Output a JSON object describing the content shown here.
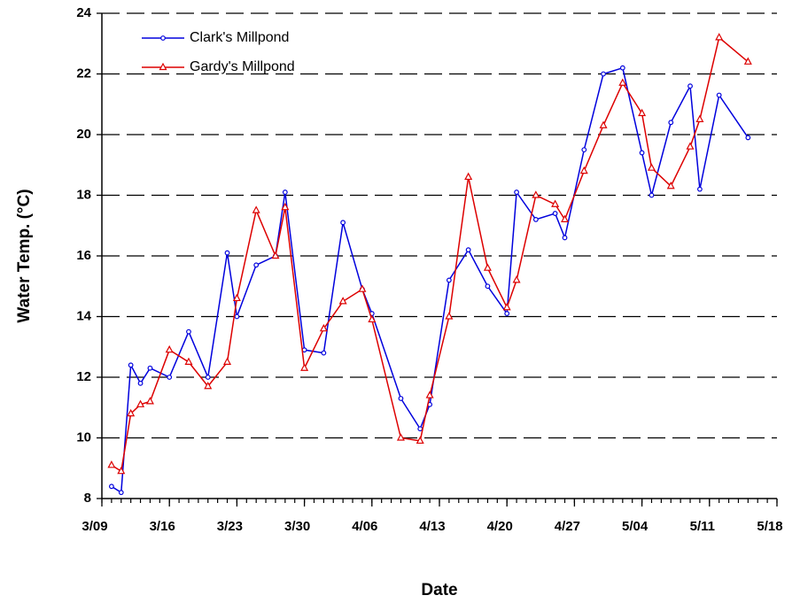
{
  "chart_data": {
    "type": "line",
    "x_label": "Date",
    "y_label": "Water Temp. (°C)",
    "x": [
      "3/10",
      "3/11",
      "3/12",
      "3/13",
      "3/14",
      "3/16",
      "3/18",
      "3/20",
      "3/22",
      "3/23",
      "3/25",
      "3/27",
      "3/28",
      "3/30",
      "4/01",
      "4/03",
      "4/05",
      "4/06",
      "4/09",
      "4/11",
      "4/12",
      "4/14",
      "4/16",
      "4/18",
      "4/20",
      "4/21",
      "4/23",
      "4/25",
      "4/26",
      "4/28",
      "4/30",
      "5/02",
      "5/04",
      "5/05",
      "5/07",
      "5/09",
      "5/10",
      "5/12",
      "5/15"
    ],
    "series": [
      {
        "name": "Clark's Millpond",
        "color": "#0000dd",
        "marker": "circle",
        "values": [
          8.4,
          8.2,
          12.4,
          11.8,
          12.3,
          12.0,
          13.5,
          12.0,
          16.1,
          14.0,
          15.7,
          16.0,
          18.1,
          12.9,
          12.8,
          17.1,
          14.9,
          14.1,
          11.3,
          10.3,
          11.1,
          15.2,
          16.2,
          15.0,
          14.1,
          18.1,
          17.2,
          17.4,
          16.6,
          19.5,
          22.0,
          22.2,
          19.4,
          18.0,
          20.4,
          21.6,
          18.2,
          21.3,
          19.9
        ]
      },
      {
        "name": "Gardy's Millpond",
        "color": "#dd0000",
        "marker": "triangle",
        "values": [
          9.1,
          8.9,
          10.8,
          11.1,
          11.2,
          12.9,
          12.5,
          11.7,
          12.5,
          14.6,
          17.5,
          16.0,
          17.6,
          12.3,
          13.6,
          14.5,
          14.9,
          13.9,
          10.0,
          9.9,
          11.4,
          14.0,
          18.6,
          15.6,
          14.3,
          15.2,
          18.0,
          17.7,
          17.2,
          18.8,
          20.3,
          21.7,
          20.7,
          18.9,
          18.3,
          19.6,
          20.5,
          23.2,
          22.4
        ]
      }
    ],
    "xlim": [
      "3/09",
      "5/18"
    ],
    "xticks": [
      "3/09",
      "3/16",
      "3/23",
      "3/30",
      "4/06",
      "4/13",
      "4/20",
      "4/27",
      "5/04",
      "5/11",
      "5/18"
    ],
    "ylim": [
      8,
      24
    ],
    "yticks": [
      8,
      10,
      12,
      14,
      16,
      18,
      20,
      22,
      24
    ],
    "grid": true,
    "legend": "top-left"
  }
}
